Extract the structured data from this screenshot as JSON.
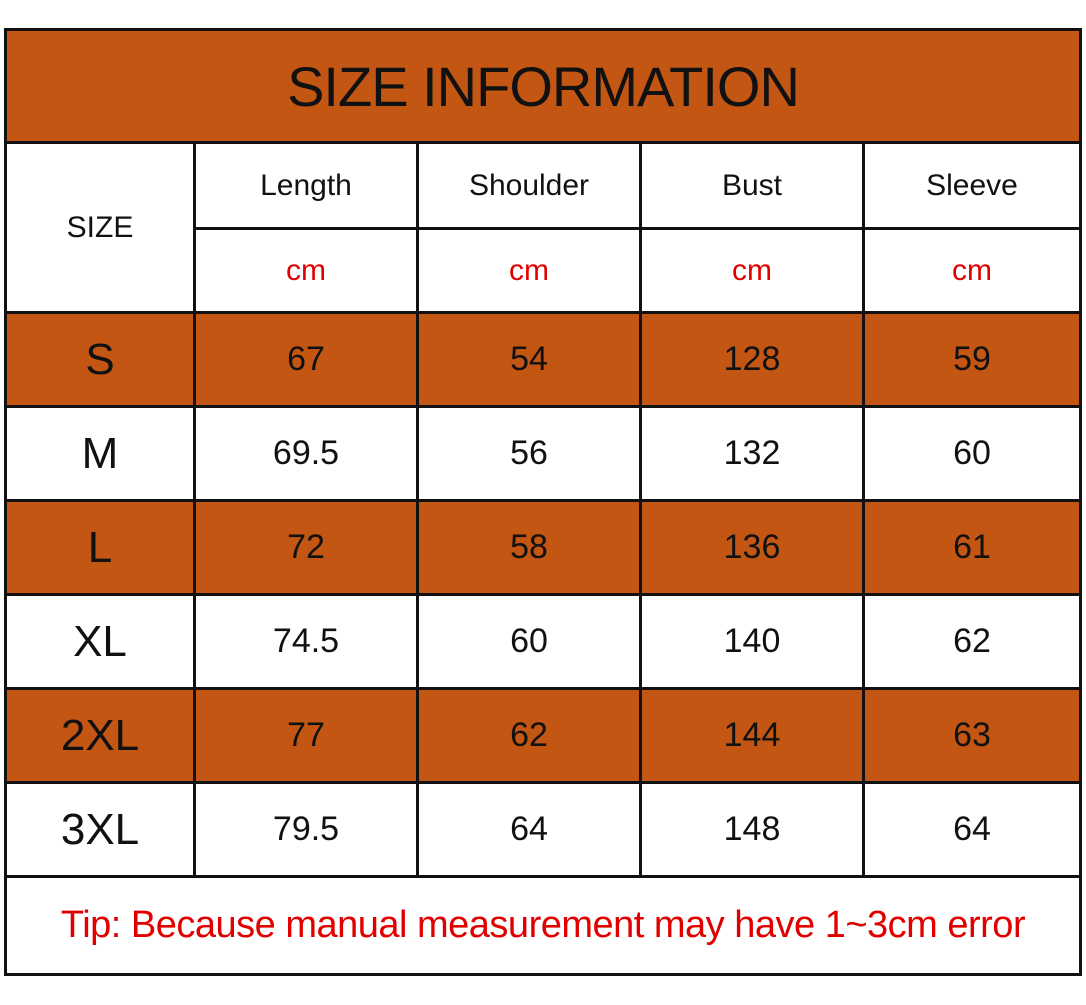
{
  "title": "SIZE INFORMATION",
  "size_header": "SIZE",
  "columns": [
    {
      "label": "Length",
      "unit": "cm"
    },
    {
      "label": "Shoulder",
      "unit": "cm"
    },
    {
      "label": "Bust",
      "unit": "cm"
    },
    {
      "label": "Sleeve",
      "unit": "cm"
    }
  ],
  "rows": [
    {
      "size": "S",
      "values": [
        "67",
        "54",
        "128",
        "59"
      ]
    },
    {
      "size": "M",
      "values": [
        "69.5",
        "56",
        "132",
        "60"
      ]
    },
    {
      "size": "L",
      "values": [
        "72",
        "58",
        "136",
        "61"
      ]
    },
    {
      "size": "XL",
      "values": [
        "74.5",
        "60",
        "140",
        "62"
      ]
    },
    {
      "size": "2XL",
      "values": [
        "77",
        "62",
        "144",
        "63"
      ]
    },
    {
      "size": "3XL",
      "values": [
        "79.5",
        "64",
        "148",
        "64"
      ]
    }
  ],
  "tip": "Tip: Because manual measurement may have 1~3cm error",
  "colors": {
    "accent": "#c45614",
    "alt_row": "#ffffff",
    "border": "#111111",
    "text": "#111111",
    "unit_text": "#e00000",
    "tip_text": "#e00000"
  }
}
